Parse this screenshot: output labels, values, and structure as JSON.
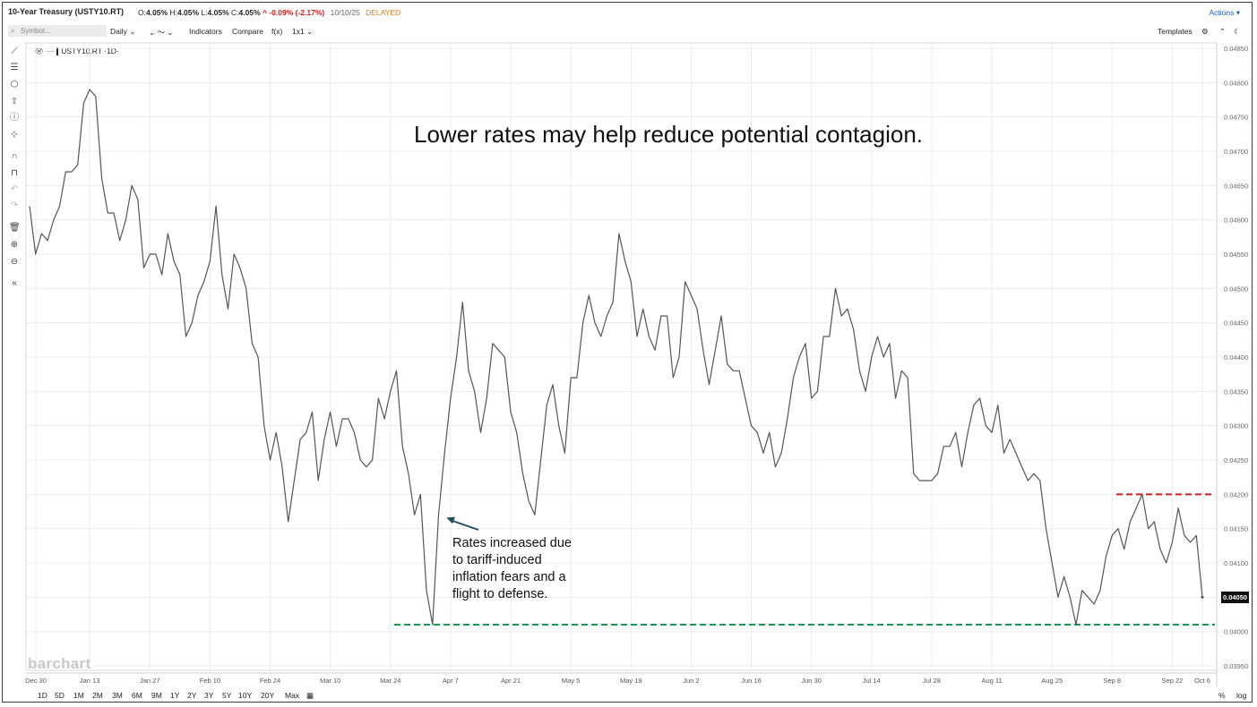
{
  "header": {
    "title": "10-Year Treasury (USTY10.RT)",
    "ohlc_prefix_o": "O:",
    "ohlc_o": "4.05%",
    "ohlc_prefix_h": "H:",
    "ohlc_h": "4.05%",
    "ohlc_prefix_l": "L:",
    "ohlc_l": "4.05%",
    "ohlc_prefix_c": "C:",
    "ohlc_c": "4.05%",
    "change": "^ -0.09% (-2.17%)",
    "date": "10/10/25",
    "status": "DELAYED",
    "actions_label": "Actions ▾"
  },
  "toolbar": {
    "search_placeholder": "Symbol...",
    "interval": "Daily ⌄",
    "chart_type": "⌄ 〜 ⌄",
    "indicators": "Indicators",
    "compare": "Compare",
    "fx": "f(x)",
    "layout": "1x1 ⌄",
    "templates": "Templates"
  },
  "legend": {
    "symbol": "USTY10.RT ·1D·"
  },
  "bottom": {
    "ranges": [
      "1D",
      "5D",
      "1M",
      "2M",
      "3M",
      "6M",
      "9M",
      "1Y",
      "2Y",
      "3Y",
      "5Y",
      "10Y",
      "20Y",
      "Max"
    ],
    "percent": "%",
    "log": "log"
  },
  "watermark": "barchart",
  "colors": {
    "line": "#555555",
    "grid": "#ececec",
    "support": "#1a9850",
    "resistance": "#d7191c",
    "arrow": "#1f4e5f"
  },
  "chart_data": {
    "type": "line",
    "title": "Lower rates may help reduce potential contagion.",
    "ylim": [
      0.0395,
      0.0485
    ],
    "yticks": [
      "0.04850",
      "0.04800",
      "0.04750",
      "0.04700",
      "0.04650",
      "0.04600",
      "0.04550",
      "0.04500",
      "0.04450",
      "0.04400",
      "0.04350",
      "0.04300",
      "0.04250",
      "0.04200",
      "0.04150",
      "0.04100",
      "0.04050",
      "0.04000",
      "0.03950"
    ],
    "x_tick_labels": [
      "Dec 30",
      "Jan 13",
      "Jan 27",
      "Feb 10",
      "Feb 24",
      "Mar 10",
      "Mar 24",
      "Apr 7",
      "Apr 21",
      "May 5",
      "May 19",
      "Jun 2",
      "Jun 16",
      "Jun 30",
      "Jul 14",
      "Jul 28",
      "Aug 11",
      "Aug 25",
      "Sep 8",
      "Sep 22",
      "Oct 6"
    ],
    "last_value_label": "0.04050",
    "series": [
      {
        "name": "USTY10.RT",
        "values": [
          0.0462,
          0.0455,
          0.0458,
          0.0457,
          0.046,
          0.0462,
          0.0467,
          0.0467,
          0.0468,
          0.0477,
          0.0479,
          0.0478,
          0.0466,
          0.0461,
          0.0461,
          0.0457,
          0.046,
          0.0465,
          0.0463,
          0.0453,
          0.0455,
          0.0455,
          0.0452,
          0.0458,
          0.0454,
          0.0452,
          0.0443,
          0.0445,
          0.0449,
          0.0451,
          0.0454,
          0.0462,
          0.0452,
          0.0447,
          0.0455,
          0.0453,
          0.045,
          0.0442,
          0.044,
          0.043,
          0.0425,
          0.0429,
          0.0424,
          0.0416,
          0.0422,
          0.0428,
          0.0429,
          0.0432,
          0.0422,
          0.0428,
          0.0432,
          0.0427,
          0.0431,
          0.0431,
          0.0429,
          0.0425,
          0.0424,
          0.0425,
          0.0434,
          0.0431,
          0.0435,
          0.0438,
          0.0427,
          0.0423,
          0.0417,
          0.042,
          0.0406,
          0.0401,
          0.0417,
          0.0426,
          0.0434,
          0.044,
          0.0448,
          0.0438,
          0.0435,
          0.0429,
          0.0434,
          0.0442,
          0.0441,
          0.044,
          0.0432,
          0.0429,
          0.0423,
          0.0419,
          0.0417,
          0.0425,
          0.0433,
          0.0436,
          0.043,
          0.0426,
          0.0437,
          0.0437,
          0.0445,
          0.0449,
          0.0445,
          0.0443,
          0.0446,
          0.0448,
          0.0458,
          0.0454,
          0.0451,
          0.0443,
          0.0447,
          0.0443,
          0.0441,
          0.0446,
          0.0446,
          0.0437,
          0.044,
          0.0451,
          0.0449,
          0.0447,
          0.0441,
          0.0436,
          0.0441,
          0.0446,
          0.0439,
          0.0438,
          0.0438,
          0.0434,
          0.043,
          0.0429,
          0.0426,
          0.0429,
          0.0424,
          0.0426,
          0.0431,
          0.0437,
          0.044,
          0.0442,
          0.0434,
          0.0435,
          0.0443,
          0.0443,
          0.045,
          0.0446,
          0.0447,
          0.0444,
          0.0438,
          0.0435,
          0.044,
          0.0443,
          0.044,
          0.0442,
          0.0434,
          0.0438,
          0.0437,
          0.0423,
          0.0422,
          0.0422,
          0.0422,
          0.0423,
          0.0427,
          0.0427,
          0.0429,
          0.0424,
          0.0429,
          0.0433,
          0.0434,
          0.043,
          0.0429,
          0.0433,
          0.0426,
          0.0428,
          0.0426,
          0.0424,
          0.0422,
          0.0423,
          0.0422,
          0.0415,
          0.041,
          0.0405,
          0.0408,
          0.0405,
          0.0401,
          0.0406,
          0.0405,
          0.0404,
          0.0406,
          0.0411,
          0.0414,
          0.0415,
          0.0412,
          0.0416,
          0.0418,
          0.042,
          0.0415,
          0.0416,
          0.0412,
          0.041,
          0.0413,
          0.0418,
          0.0414,
          0.0413,
          0.0414,
          0.0405
        ]
      }
    ],
    "reference_lines": [
      {
        "name": "support",
        "value": 0.0401,
        "style": "dashed",
        "color": "green"
      },
      {
        "name": "resistance",
        "value": 0.042,
        "style": "dashed",
        "color": "red"
      }
    ],
    "annotation": "Rates increased due to tariff-induced inflation fears and a flight to defense."
  }
}
